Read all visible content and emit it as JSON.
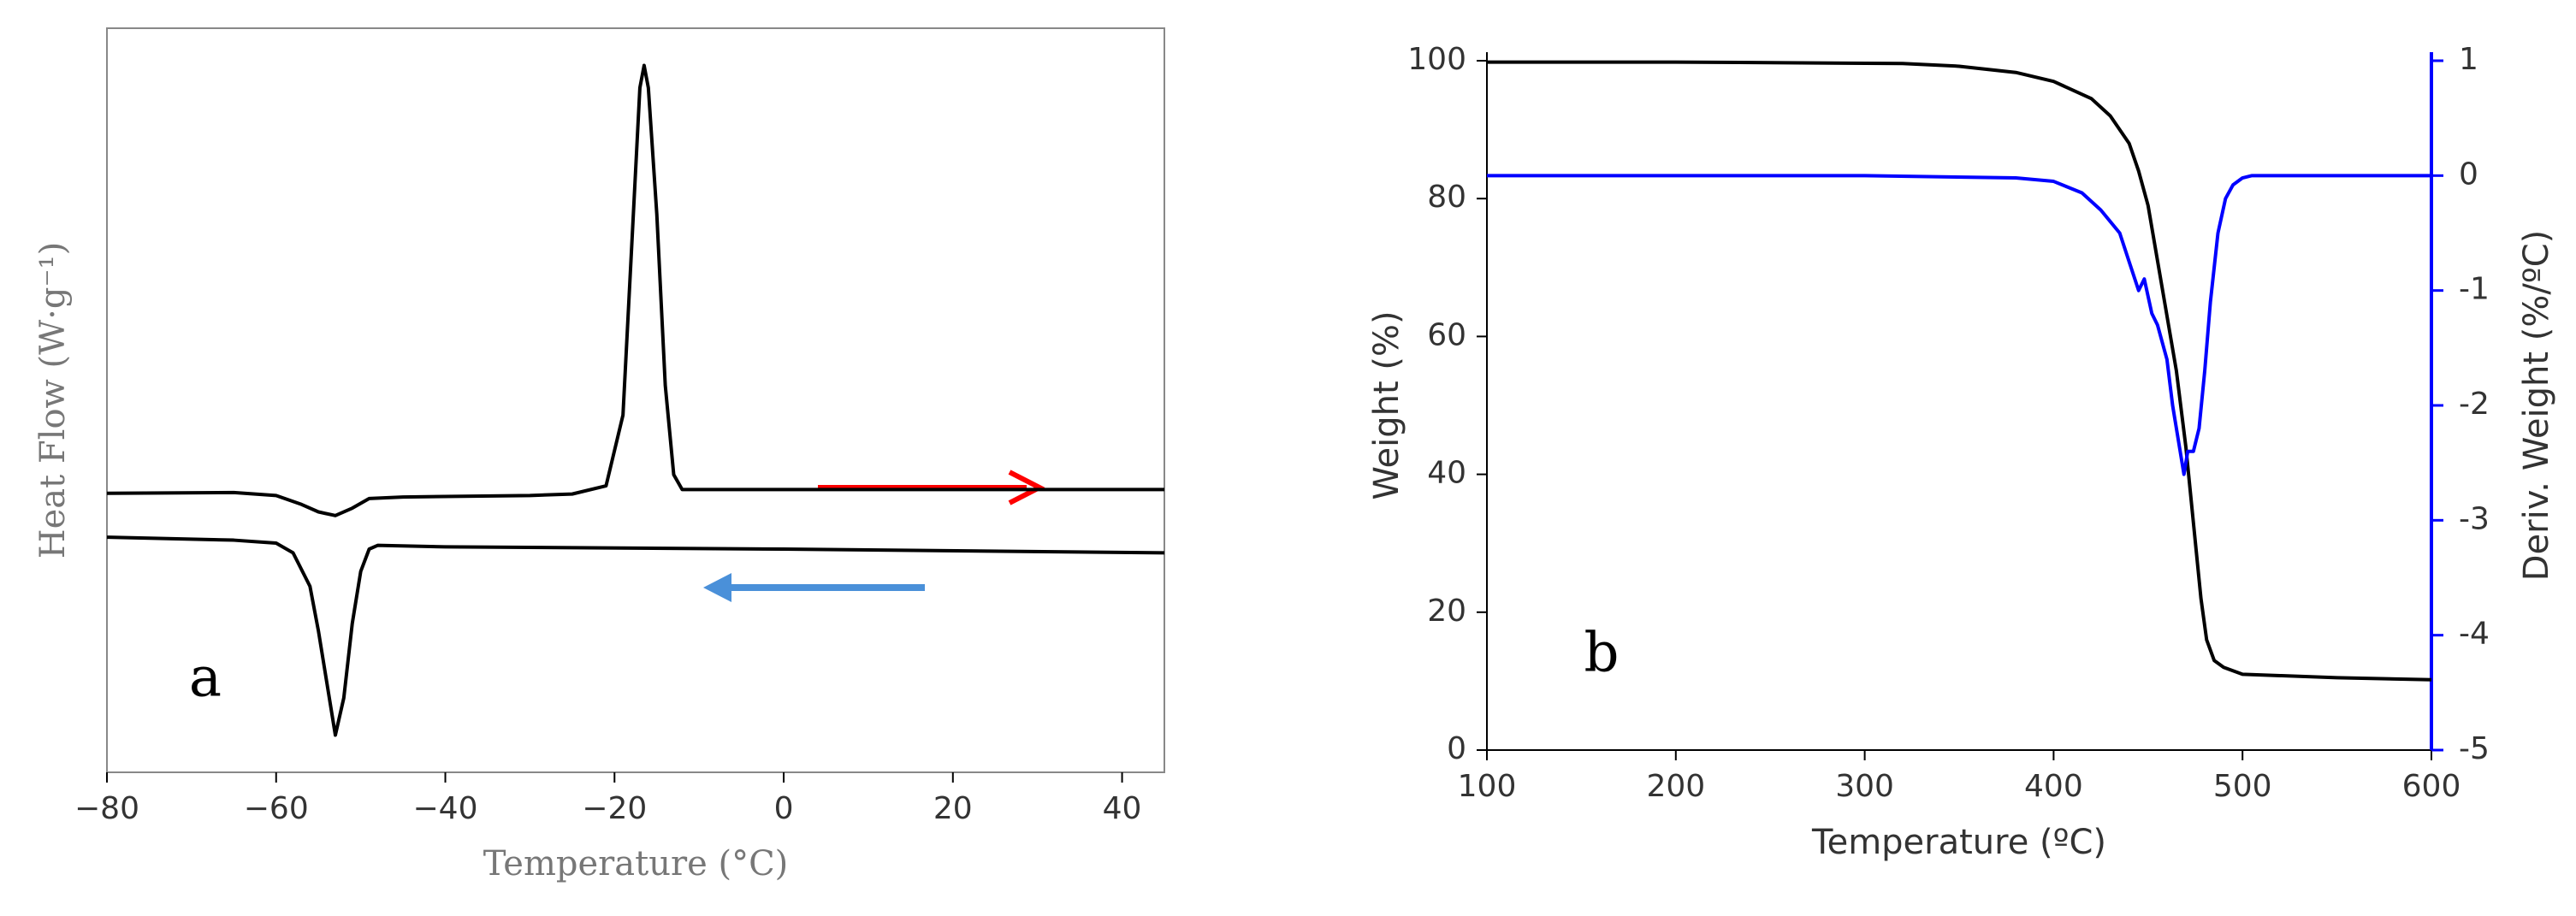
{
  "chart_data": [
    {
      "type": "line",
      "label": "a",
      "xlabel": "Temperature (°C)",
      "ylabel": "Heat Flow (W·g⁻¹)",
      "xlim": [
        -80,
        45
      ],
      "xticks": [
        {
          "value": -80,
          "label": "−80"
        },
        {
          "value": -60,
          "label": "−60"
        },
        {
          "value": -40,
          "label": "−40"
        },
        {
          "value": -20,
          "label": "−20"
        },
        0,
        20,
        40
      ],
      "ylim": [
        0,
        100
      ],
      "grid": false,
      "series": [
        {
          "color": "#000000",
          "x": [
            -80,
            -65,
            -60,
            -57,
            -55,
            -53,
            -51,
            -49,
            -45,
            -30,
            -25,
            -21,
            -19,
            -18,
            -17,
            -16.5,
            -16,
            -15,
            -14,
            -13,
            -12,
            -10,
            0,
            20,
            45
          ],
          "values": [
            37.5,
            37.6,
            37.2,
            36,
            35,
            34.5,
            35.5,
            36.8,
            37,
            37.2,
            37.4,
            38.5,
            48,
            70,
            92,
            95,
            92,
            75,
            52,
            40,
            38,
            38,
            38,
            38,
            38
          ]
        },
        {
          "color": "#000000",
          "x": [
            -80,
            -65,
            -60,
            -58,
            -56,
            -55,
            -54,
            -53,
            -52,
            -51,
            -50,
            -49,
            -48,
            -40,
            0,
            45
          ],
          "values": [
            31.6,
            31.2,
            30.8,
            29.5,
            25,
            19,
            12,
            5,
            10,
            20,
            27,
            30,
            30.5,
            30.3,
            30,
            29.5
          ]
        }
      ]
    },
    {
      "type": "line",
      "label": "b",
      "xlabel": "Temperature (ºC)",
      "ylabel": "Weight (%)",
      "y2label": "Deriv. Weight (%/ºC)",
      "xlim": [
        100,
        600
      ],
      "xticks": [
        100,
        200,
        300,
        400,
        500,
        600
      ],
      "ylim": [
        0,
        100
      ],
      "yticks": [
        0,
        20,
        40,
        60,
        80,
        100
      ],
      "y2lim": [
        -5,
        1
      ],
      "y2ticks": [
        -5,
        -4,
        -3,
        -2,
        -1,
        0,
        1
      ],
      "grid": false,
      "series": [
        {
          "color": "#000000",
          "x": [
            100,
            200,
            320,
            350,
            380,
            400,
            420,
            430,
            440,
            445,
            450,
            455,
            460,
            465,
            470,
            474,
            478,
            481,
            485,
            490,
            500,
            520,
            550,
            600
          ],
          "values": [
            99.8,
            99.8,
            99.6,
            99.2,
            98.3,
            97,
            94.5,
            92,
            88,
            84,
            79,
            71,
            63,
            55,
            44,
            33,
            22,
            16,
            13,
            12,
            11,
            10.8,
            10.5,
            10.2
          ]
        },
        {
          "color": "#0000ff",
          "axis": "y2",
          "x": [
            100,
            200,
            300,
            380,
            400,
            415,
            425,
            435,
            440,
            445,
            448,
            452,
            455,
            460,
            463,
            466,
            469,
            471,
            474,
            477,
            480,
            483,
            487,
            491,
            495,
            500,
            505,
            550,
            600
          ],
          "values": [
            0,
            0,
            0,
            -0.02,
            -0.05,
            -0.15,
            -0.3,
            -0.5,
            -0.75,
            -1.0,
            -0.9,
            -1.2,
            -1.3,
            -1.6,
            -2.0,
            -2.3,
            -2.6,
            -2.4,
            -2.4,
            -2.2,
            -1.7,
            -1.1,
            -0.5,
            -0.2,
            -0.08,
            -0.02,
            0,
            0,
            0
          ]
        }
      ]
    }
  ]
}
